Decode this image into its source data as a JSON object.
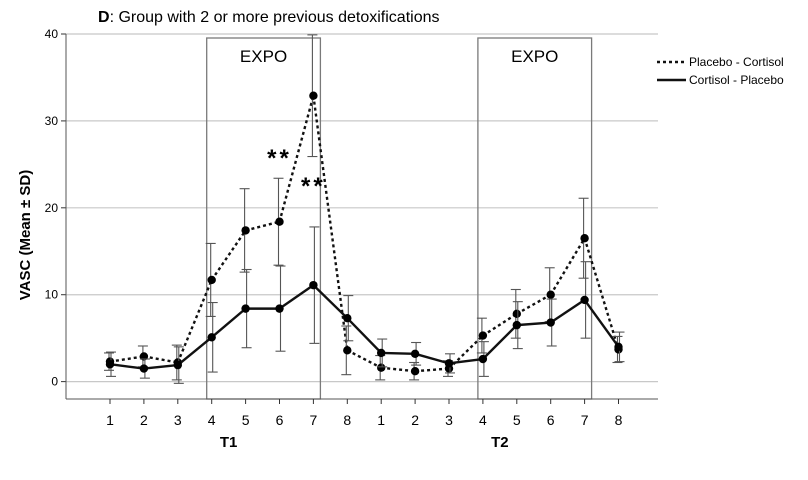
{
  "chart_data": {
    "type": "line",
    "panel_letter": "D",
    "title_rest": ": Group with 2 or more previous detoxifications",
    "ylabel": "VASC (Mean ± SD)",
    "ylim": [
      -2,
      40
    ],
    "yticks": [
      0,
      10,
      20,
      30,
      40
    ],
    "tick_labels": [
      "1",
      "2",
      "3",
      "4",
      "5",
      "6",
      "7",
      "8",
      "1",
      "2",
      "3",
      "4",
      "5",
      "6",
      "7",
      "8"
    ],
    "groups": [
      {
        "label": "T1",
        "from_index": 0,
        "to_index": 7
      },
      {
        "label": "T2",
        "from_index": 8,
        "to_index": 15
      }
    ],
    "expo_boxes": [
      {
        "label": "EXPO",
        "from_index": 3,
        "to_index": 6
      },
      {
        "label": "EXPO",
        "from_index": 11,
        "to_index": 14
      }
    ],
    "annotations": [
      {
        "text": "**",
        "x_index": 5,
        "y": 24.8
      },
      {
        "text": "**",
        "x_index": 6,
        "y": 21.6
      }
    ],
    "series": [
      {
        "name": "Placebo - Cortisol",
        "style": "dotted",
        "values": [
          2.3,
          2.9,
          2.2,
          11.7,
          17.4,
          18.4,
          32.9,
          3.6,
          1.6,
          1.2,
          1.5,
          5.3,
          7.8,
          10.0,
          16.5,
          3.7
        ],
        "sd": [
          1.0,
          1.2,
          2.0,
          4.2,
          4.8,
          5.0,
          7.0,
          2.8,
          1.4,
          1.0,
          0.9,
          2.0,
          2.8,
          3.1,
          4.6,
          1.5
        ]
      },
      {
        "name": "Cortisol - Placebo",
        "style": "solid",
        "values": [
          2.0,
          1.5,
          1.9,
          5.1,
          8.4,
          8.4,
          11.1,
          7.3,
          3.3,
          3.2,
          2.1,
          2.6,
          6.5,
          6.8,
          9.4,
          4.0
        ],
        "sd": [
          1.4,
          1.1,
          2.1,
          4.0,
          4.5,
          4.9,
          6.7,
          2.6,
          1.6,
          1.3,
          1.1,
          2.0,
          2.7,
          2.7,
          4.4,
          1.7
        ]
      }
    ]
  }
}
